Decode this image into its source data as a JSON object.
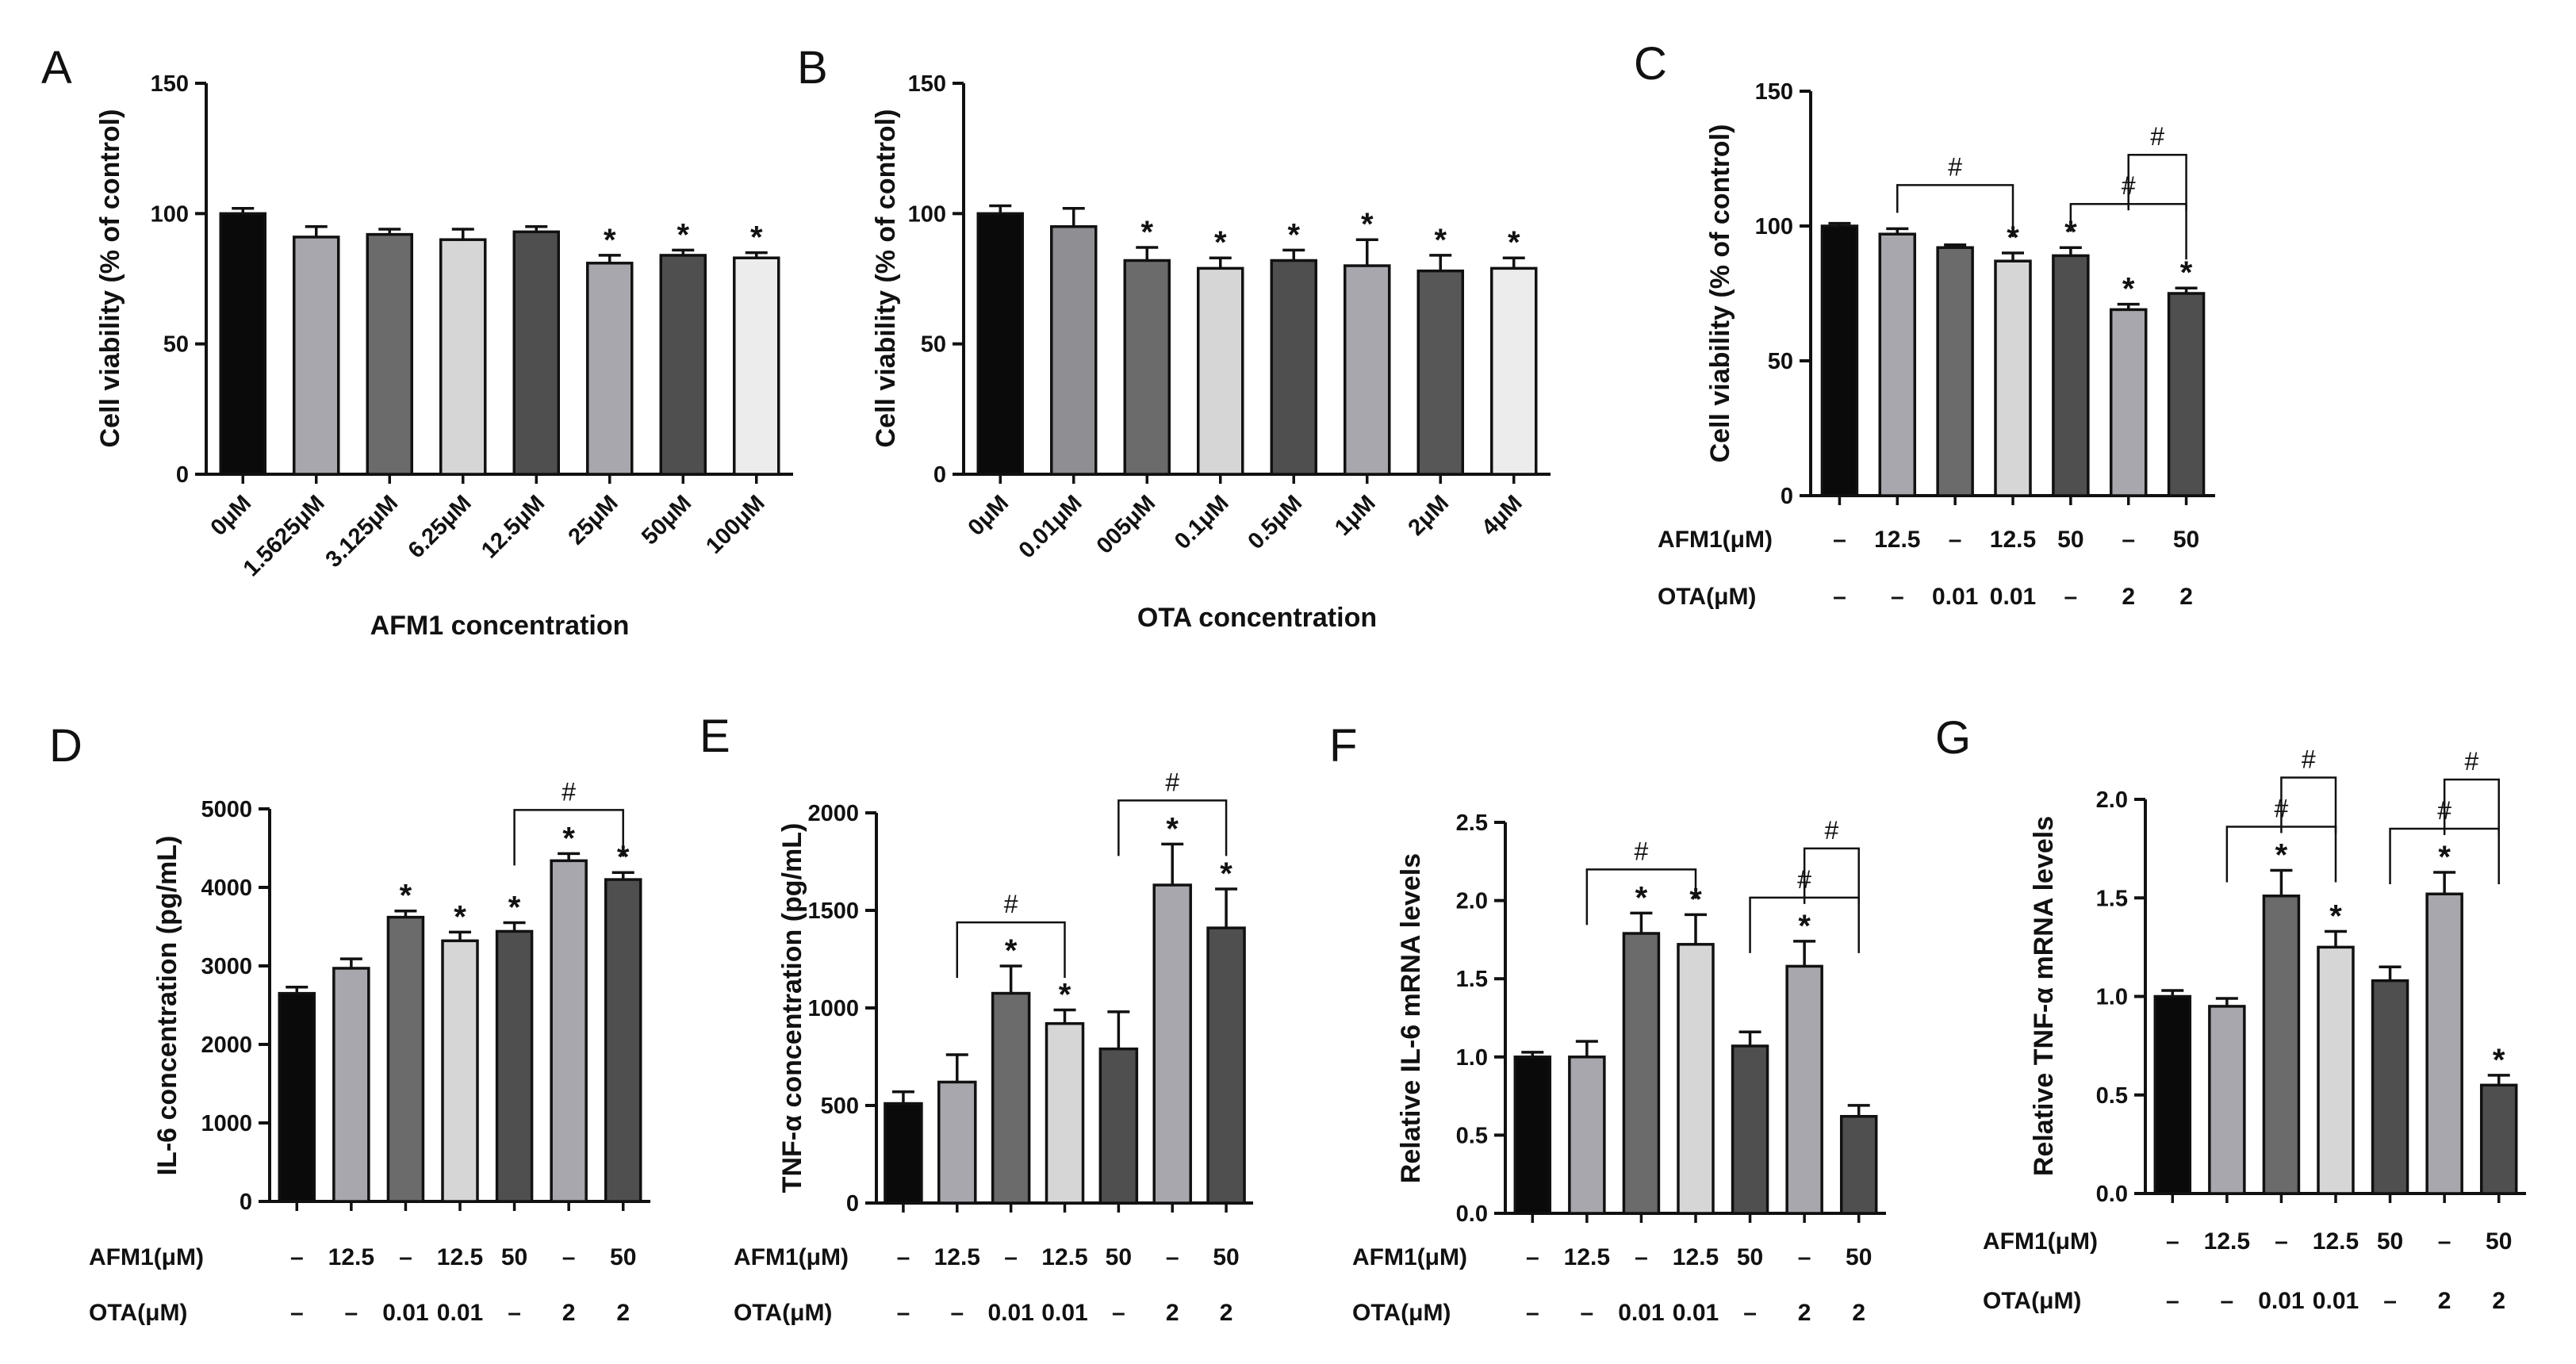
{
  "figure": {
    "background": "#ffffff"
  },
  "colors": {
    "black": "#0a0a0a",
    "mid_gray": "#8f8f93",
    "dark_gray": "#6b6b6b",
    "light_gray": "#d6d6d6",
    "charcoal": "#4f4f4f",
    "lilac_gray": "#a7a7ad",
    "slate": "#575757",
    "pale": "#ececec"
  },
  "chart_data": [
    {
      "id": "A",
      "letter": "A",
      "type": "bar",
      "title": "",
      "xlabel": "AFM1 concentration",
      "ylabel": "Cell viability (% of control)",
      "ylim": [
        0,
        150
      ],
      "yticks": [
        0,
        50,
        100,
        150
      ],
      "categories": [
        "0μM",
        "1.5625μM",
        "3.125μM",
        "6.25μM",
        "12.5μM",
        "25μM",
        "50μM",
        "100μM"
      ],
      "values": [
        100,
        91,
        92,
        90,
        93,
        81,
        84,
        83
      ],
      "errors": [
        2,
        4,
        2,
        4,
        2,
        3,
        2,
        2
      ],
      "colors": [
        "black",
        "lilac_gray",
        "dark_gray",
        "light_gray",
        "charcoal",
        "lilac_gray",
        "charcoal",
        "pale"
      ],
      "stars": [
        false,
        false,
        false,
        false,
        false,
        true,
        true,
        true
      ],
      "brackets": []
    },
    {
      "id": "B",
      "letter": "B",
      "type": "bar",
      "title": "",
      "xlabel": "OTA concentration",
      "ylabel": "Cell viability (% of control)",
      "ylim": [
        0,
        150
      ],
      "yticks": [
        0,
        50,
        100,
        150
      ],
      "categories": [
        "0μM",
        "0.01μM",
        "005μM",
        "0.1μM",
        "0.5μM",
        "1μM",
        "2μM",
        "4μM"
      ],
      "values": [
        100,
        95,
        82,
        79,
        82,
        80,
        78,
        79
      ],
      "errors": [
        3,
        7,
        5,
        4,
        4,
        10,
        6,
        4
      ],
      "colors": [
        "black",
        "mid_gray",
        "dark_gray",
        "light_gray",
        "charcoal",
        "lilac_gray",
        "slate",
        "pale"
      ],
      "stars": [
        false,
        false,
        true,
        true,
        true,
        true,
        true,
        true
      ],
      "brackets": []
    },
    {
      "id": "C",
      "letter": "C",
      "type": "bar",
      "title": "",
      "xlabel": "",
      "ylabel": "Cell viability (% of control)",
      "ylim": [
        0,
        150
      ],
      "yticks": [
        0,
        50,
        100,
        150
      ],
      "values": [
        100,
        97,
        92,
        87,
        89,
        69,
        75
      ],
      "errors": [
        1,
        2,
        1,
        3,
        3,
        2,
        2
      ],
      "colors": [
        "black",
        "lilac_gray",
        "dark_gray",
        "light_gray",
        "charcoal",
        "lilac_gray",
        "charcoal"
      ],
      "stars": [
        false,
        false,
        false,
        true,
        true,
        true,
        true
      ],
      "brackets": [
        [
          1,
          3
        ],
        [
          4,
          6
        ],
        [
          5,
          6
        ]
      ],
      "conditions": [
        {
          "label": "AFM1(μM)",
          "values": [
            "–",
            "12.5",
            "–",
            "12.5",
            "50",
            "–",
            "50"
          ]
        },
        {
          "label": "OTA(μM)",
          "values": [
            "–",
            "–",
            "0.01",
            "0.01",
            "–",
            "2",
            "2"
          ]
        }
      ]
    },
    {
      "id": "D",
      "letter": "D",
      "type": "bar",
      "title": "",
      "xlabel": "",
      "ylabel": "IL-6 concentration (pg/mL)",
      "ylim": [
        0,
        5000
      ],
      "yticks": [
        0,
        1000,
        2000,
        3000,
        4000,
        5000
      ],
      "values": [
        2650,
        2970,
        3620,
        3320,
        3440,
        4340,
        4100
      ],
      "errors": [
        80,
        120,
        80,
        110,
        110,
        90,
        90
      ],
      "colors": [
        "black",
        "lilac_gray",
        "dark_gray",
        "light_gray",
        "charcoal",
        "lilac_gray",
        "charcoal"
      ],
      "stars": [
        false,
        false,
        true,
        true,
        true,
        true,
        true
      ],
      "brackets": [
        [
          4,
          6
        ]
      ],
      "conditions": [
        {
          "label": "AFM1(μM)",
          "values": [
            "–",
            "12.5",
            "–",
            "12.5",
            "50",
            "–",
            "50"
          ]
        },
        {
          "label": "OTA(μM)",
          "values": [
            "–",
            "–",
            "0.01",
            "0.01",
            "–",
            "2",
            "2"
          ]
        }
      ]
    },
    {
      "id": "E",
      "letter": "E",
      "type": "bar",
      "title": "",
      "xlabel": "",
      "ylabel": "TNF-α concentration (pg/mL)",
      "ylim": [
        0,
        2000
      ],
      "yticks": [
        0,
        500,
        1000,
        1500,
        2000
      ],
      "values": [
        510,
        620,
        1075,
        920,
        790,
        1630,
        1410
      ],
      "errors": [
        60,
        140,
        140,
        70,
        190,
        210,
        200
      ],
      "colors": [
        "black",
        "lilac_gray",
        "dark_gray",
        "light_gray",
        "charcoal",
        "lilac_gray",
        "charcoal"
      ],
      "stars": [
        false,
        false,
        true,
        true,
        false,
        true,
        true
      ],
      "brackets": [
        [
          1,
          3
        ],
        [
          4,
          6
        ]
      ],
      "conditions": [
        {
          "label": "AFM1(μM)",
          "values": [
            "–",
            "12.5",
            "–",
            "12.5",
            "50",
            "–",
            "50"
          ]
        },
        {
          "label": "OTA(μM)",
          "values": [
            "–",
            "–",
            "0.01",
            "0.01",
            "–",
            "2",
            "2"
          ]
        }
      ]
    },
    {
      "id": "F",
      "letter": "F",
      "type": "bar",
      "title": "",
      "xlabel": "",
      "ylabel": "Relative IL-6 mRNA levels",
      "ylim": [
        0,
        2.5
      ],
      "yticks": [
        0,
        0.5,
        1.0,
        1.5,
        2.0,
        2.5
      ],
      "ytick_labels": [
        "0.0",
        "0.5",
        "1.0",
        "1.5",
        "2.0",
        "2.5"
      ],
      "values": [
        1.0,
        1.0,
        1.79,
        1.72,
        1.07,
        1.58,
        0.62
      ],
      "errors": [
        0.03,
        0.1,
        0.13,
        0.19,
        0.09,
        0.16,
        0.07
      ],
      "colors": [
        "black",
        "lilac_gray",
        "dark_gray",
        "light_gray",
        "charcoal",
        "lilac_gray",
        "charcoal"
      ],
      "stars": [
        false,
        false,
        true,
        true,
        false,
        true,
        false
      ],
      "brackets": [
        [
          1,
          3
        ],
        [
          4,
          6
        ],
        [
          5,
          6
        ]
      ],
      "conditions": [
        {
          "label": "AFM1(μM)",
          "values": [
            "–",
            "12.5",
            "–",
            "12.5",
            "50",
            "–",
            "50"
          ]
        },
        {
          "label": "OTA(μM)",
          "values": [
            "–",
            "–",
            "0.01",
            "0.01",
            "–",
            "2",
            "2"
          ]
        }
      ]
    },
    {
      "id": "G",
      "letter": "G",
      "type": "bar",
      "title": "",
      "xlabel": "",
      "ylabel": "Relative TNF-α mRNA levels",
      "ylim": [
        0,
        2.0
      ],
      "yticks": [
        0,
        0.5,
        1.0,
        1.5,
        2.0
      ],
      "ytick_labels": [
        "0.0",
        "0.5",
        "1.0",
        "1.5",
        "2.0"
      ],
      "values": [
        1.0,
        0.95,
        1.51,
        1.25,
        1.08,
        1.52,
        0.55
      ],
      "errors": [
        0.03,
        0.04,
        0.13,
        0.08,
        0.07,
        0.11,
        0.05
      ],
      "colors": [
        "black",
        "lilac_gray",
        "dark_gray",
        "light_gray",
        "charcoal",
        "lilac_gray",
        "charcoal"
      ],
      "stars": [
        false,
        false,
        true,
        true,
        false,
        true,
        true
      ],
      "brackets": [
        [
          1,
          3
        ],
        [
          2,
          3
        ],
        [
          4,
          6
        ],
        [
          5,
          6
        ]
      ],
      "conditions": [
        {
          "label": "AFM1(μM)",
          "values": [
            "–",
            "12.5",
            "–",
            "12.5",
            "50",
            "–",
            "50"
          ]
        },
        {
          "label": "OTA(μM)",
          "values": [
            "–",
            "–",
            "0.01",
            "0.01",
            "–",
            "2",
            "2"
          ]
        }
      ]
    }
  ],
  "annotations": {
    "star": "*",
    "hash": "#"
  }
}
